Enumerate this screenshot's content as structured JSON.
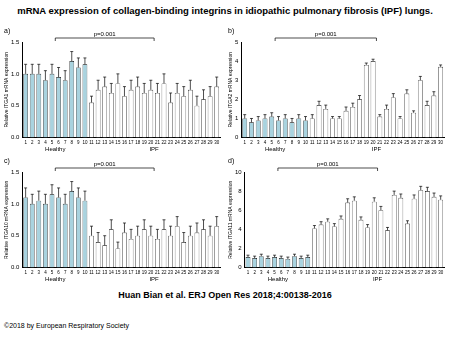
{
  "title": "mRNA expression of collagen-binding integrins in idiopathic pulmonary fibrosis (IPF) lungs.",
  "citation": "Huan Bian et al. ERJ Open Res 2018;4:00138-2016",
  "copyright": "©2018 by European Respiratory Society",
  "chart_data": [
    {
      "type": "bar",
      "title": "a)",
      "y_label": "Relative ITGA1 mRNA expression",
      "annotation": "p=0.001",
      "categories": [
        "1",
        "2",
        "3",
        "4",
        "5",
        "6",
        "7",
        "8",
        "9",
        "10",
        "11",
        "12",
        "13",
        "14",
        "15",
        "16",
        "17",
        "18",
        "19",
        "20",
        "21",
        "22",
        "23",
        "24",
        "25",
        "26",
        "27",
        "28",
        "29",
        "30"
      ],
      "groups": [
        {
          "name": "Healthy",
          "size": 10,
          "color": "#a9d3df"
        },
        {
          "name": "IPF",
          "size": 20,
          "color": "#ffffff"
        }
      ],
      "values": [
        1.0,
        1.0,
        1.0,
        0.9,
        1.0,
        0.95,
        0.9,
        1.2,
        1.1,
        1.15,
        0.55,
        0.75,
        0.8,
        0.7,
        0.85,
        0.65,
        0.75,
        0.8,
        0.7,
        0.75,
        0.7,
        0.85,
        0.55,
        0.7,
        0.65,
        0.75,
        0.5,
        0.6,
        0.65,
        0.8
      ],
      "errors": [
        0.15,
        0.15,
        0.15,
        0.15,
        0.15,
        0.15,
        0.15,
        0.15,
        0.15,
        0.1,
        0.1,
        0.15,
        0.15,
        0.15,
        0.15,
        0.15,
        0.15,
        0.15,
        0.15,
        0.15,
        0.15,
        0.15,
        0.15,
        0.15,
        0.15,
        0.15,
        0.15,
        0.15,
        0.15,
        0.15
      ],
      "ylim": [
        0,
        1.5
      ],
      "yticks": [
        {
          "value": 0,
          "label": "0.0"
        },
        0.5,
        {
          "value": 1,
          "label": "1.0"
        },
        1.5
      ],
      "grid": false
    },
    {
      "type": "bar",
      "title": "b)",
      "y_label": "Relative ITGA2 mRNA expression",
      "annotation": "p=0.001",
      "categories": [
        "1",
        "2",
        "3",
        "4",
        "5",
        "6",
        "7",
        "8",
        "9",
        "10",
        "11",
        "12",
        "13",
        "14",
        "15",
        "16",
        "17",
        "18",
        "19",
        "20",
        "21",
        "22",
        "23",
        "24",
        "25",
        "26",
        "27",
        "28",
        "29",
        "30"
      ],
      "groups": [
        {
          "name": "Healthy",
          "size": 10,
          "color": "#a9d3df"
        },
        {
          "name": "IPF",
          "size": 20,
          "color": "#ffffff"
        }
      ],
      "values": [
        1.0,
        0.8,
        0.9,
        1.0,
        1.1,
        0.9,
        1.0,
        0.8,
        1.0,
        0.9,
        1.0,
        1.7,
        1.5,
        1.0,
        1.0,
        1.4,
        1.6,
        2.0,
        3.8,
        4.0,
        1.1,
        1.5,
        2.1,
        1.0,
        2.3,
        1.3,
        3.0,
        1.7,
        2.2,
        3.7
      ],
      "errors": [
        0.2,
        0.2,
        0.2,
        0.2,
        0.2,
        0.2,
        0.2,
        0.2,
        0.2,
        0.2,
        0.2,
        0.2,
        0.2,
        0.1,
        0.1,
        0.2,
        0.2,
        0.2,
        0.1,
        0.1,
        0.1,
        0.2,
        0.2,
        0.1,
        0.2,
        0.1,
        0.2,
        0.2,
        0.2,
        0.1
      ],
      "ylim": [
        0,
        5
      ],
      "yticks": [
        0,
        1,
        2,
        3,
        4,
        5
      ],
      "grid": false
    },
    {
      "type": "bar",
      "title": "c)",
      "y_label": "Relative ITGA10 mRNA expression",
      "annotation": "p=0.001",
      "categories": [
        "1",
        "2",
        "3",
        "4",
        "5",
        "6",
        "7",
        "8",
        "9",
        "10",
        "11",
        "12",
        "13",
        "14",
        "15",
        "16",
        "17",
        "18",
        "19",
        "20",
        "21",
        "22",
        "23",
        "24",
        "25",
        "26",
        "27",
        "28",
        "29",
        "30"
      ],
      "groups": [
        {
          "name": "Healthy",
          "size": 10,
          "color": "#a9d3df"
        },
        {
          "name": "IPF",
          "size": 20,
          "color": "#ffffff"
        }
      ],
      "values": [
        1.1,
        1.0,
        1.05,
        1.0,
        1.15,
        1.1,
        1.0,
        1.2,
        1.1,
        1.05,
        0.5,
        0.4,
        0.35,
        0.6,
        0.3,
        0.55,
        0.45,
        0.5,
        0.6,
        0.5,
        0.45,
        0.6,
        0.5,
        0.65,
        0.4,
        0.5,
        0.55,
        0.6,
        0.5,
        0.65
      ],
      "errors": [
        0.15,
        0.15,
        0.15,
        0.15,
        0.15,
        0.15,
        0.15,
        0.15,
        0.15,
        0.15,
        0.15,
        0.15,
        0.15,
        0.15,
        0.1,
        0.15,
        0.15,
        0.15,
        0.15,
        0.15,
        0.15,
        0.15,
        0.15,
        0.15,
        0.15,
        0.15,
        0.15,
        0.15,
        0.15,
        0.15
      ],
      "ylim": [
        0,
        1.5
      ],
      "yticks": [
        {
          "value": 0,
          "label": "0.0"
        },
        0.5,
        {
          "value": 1,
          "label": "1.0"
        },
        1.5
      ],
      "grid": false
    },
    {
      "type": "bar",
      "title": "d)",
      "y_label": "Relative ITGA11 mRNA expression",
      "annotation": "p=0.001",
      "categories": [
        "1",
        "2",
        "3",
        "4",
        "5",
        "6",
        "7",
        "8",
        "9",
        "10",
        "11",
        "12",
        "13",
        "14",
        "15",
        "16",
        "17",
        "18",
        "19",
        "20",
        "21",
        "22",
        "23",
        "24",
        "25",
        "26",
        "27",
        "28",
        "29",
        "30"
      ],
      "groups": [
        {
          "name": "Healthy",
          "size": 10,
          "color": "#a9d3df"
        },
        {
          "name": "IPF",
          "size": 20,
          "color": "#ffffff"
        }
      ],
      "values": [
        1.1,
        1.0,
        1.2,
        1.0,
        1.1,
        1.0,
        0.9,
        1.2,
        1.0,
        1.1,
        4.1,
        4.5,
        4.8,
        4.3,
        5.1,
        6.8,
        7.0,
        5.0,
        4.2,
        6.9,
        6.0,
        3.9,
        7.6,
        7.3,
        4.6,
        7.2,
        8.1,
        8.0,
        7.4,
        7.1
      ],
      "errors": [
        0.2,
        0.2,
        0.2,
        0.2,
        0.2,
        0.2,
        0.2,
        0.2,
        0.2,
        0.2,
        0.3,
        0.3,
        0.3,
        0.3,
        0.3,
        0.4,
        0.4,
        0.3,
        0.3,
        0.4,
        0.4,
        0.3,
        0.4,
        0.4,
        0.3,
        0.4,
        0.4,
        0.4,
        0.4,
        0.4
      ],
      "ylim": [
        0,
        10
      ],
      "yticks": [
        0,
        2,
        4,
        6,
        8,
        10
      ],
      "grid": false
    }
  ]
}
